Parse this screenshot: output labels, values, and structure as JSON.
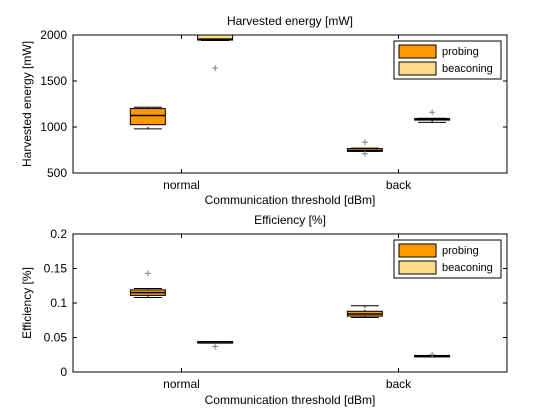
{
  "chart_data": [
    {
      "type": "box",
      "title": "Harvested energy [mW]",
      "xlabel": "Communication threshold [dBm]",
      "ylabel": "Harvested energy [mW]",
      "categories": [
        "normal",
        "back"
      ],
      "ylim": [
        500,
        2000
      ],
      "yticks": [
        500,
        1000,
        1500,
        2000
      ],
      "yticklabels": [
        "500",
        "1000",
        "1500",
        "2000"
      ],
      "legend_position": "top-right",
      "series": [
        {
          "name": "probing",
          "color": "#ff9900",
          "boxes": [
            {
              "category": "normal",
              "whisker_low": 980,
              "q1": 1025,
              "median": 1125,
              "q3": 1200,
              "whisker_high": 1215,
              "outliers": []
            },
            {
              "category": "back",
              "whisker_low": 735,
              "q1": 735,
              "median": 745,
              "q3": 765,
              "whisker_high": 770,
              "outliers": [
                835,
                710
              ]
            }
          ]
        },
        {
          "name": "beaconing",
          "color": "#ffdd88",
          "boxes": [
            {
              "category": "normal",
              "whisker_low": 1940,
              "q1": 1945,
              "median": 1955,
              "q3": 2000,
              "whisker_high": 2000,
              "outliers": [
                1640
              ]
            },
            {
              "category": "back",
              "whisker_low": 1050,
              "q1": 1075,
              "median": 1082,
              "q3": 1092,
              "whisker_high": 1095,
              "outliers": [
                1160
              ]
            }
          ]
        }
      ]
    },
    {
      "type": "box",
      "title": "Efficiency [%]",
      "xlabel": "Communication threshold [dBm]",
      "ylabel": "Efficiency [%]",
      "categories": [
        "normal",
        "back"
      ],
      "ylim": [
        0,
        0.2
      ],
      "yticks": [
        0,
        0.05,
        0.1,
        0.15,
        0.2
      ],
      "yticklabels": [
        "0",
        "0.05",
        "0.1",
        "0.15",
        "0.2"
      ],
      "legend_position": "top-right",
      "series": [
        {
          "name": "probing",
          "color": "#ff9900",
          "boxes": [
            {
              "category": "normal",
              "whisker_low": 0.108,
              "q1": 0.111,
              "median": 0.115,
              "q3": 0.119,
              "whisker_high": 0.121,
              "outliers": [
                0.143
              ]
            },
            {
              "category": "back",
              "whisker_low": 0.079,
              "q1": 0.081,
              "median": 0.084,
              "q3": 0.088,
              "whisker_high": 0.096,
              "outliers": []
            }
          ]
        },
        {
          "name": "beaconing",
          "color": "#ffdd88",
          "boxes": [
            {
              "category": "normal",
              "whisker_low": 0.043,
              "q1": 0.043,
              "median": 0.0435,
              "q3": 0.044,
              "whisker_high": 0.044,
              "outliers": [
                0.037
              ]
            },
            {
              "category": "back",
              "whisker_low": 0.023,
              "q1": 0.023,
              "median": 0.0235,
              "q3": 0.024,
              "whisker_high": 0.024,
              "outliers": [
                0.025
              ]
            }
          ]
        }
      ]
    }
  ]
}
